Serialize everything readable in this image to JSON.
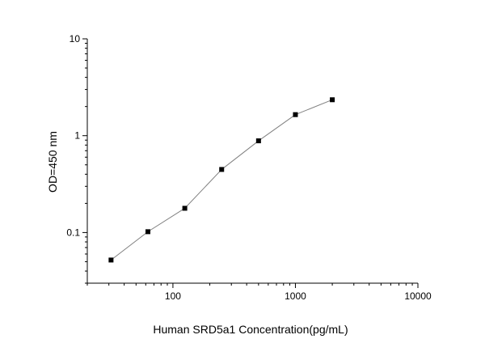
{
  "chart_data": {
    "type": "line",
    "title": "",
    "xlabel": "Human SRD5a1 Concentration(pg/mL)",
    "ylabel": "OD=450 nm",
    "xscale": "log",
    "yscale": "log",
    "xlim": [
      20,
      10000
    ],
    "ylim": [
      0.03,
      10
    ],
    "x_ticks": [
      {
        "value": 100,
        "label": "100"
      },
      {
        "value": 1000,
        "label": "1000"
      },
      {
        "value": 10000,
        "label": "10000"
      }
    ],
    "y_ticks": [
      {
        "value": 0.1,
        "label": "0.1"
      },
      {
        "value": 1,
        "label": "1"
      },
      {
        "value": 10,
        "label": "10"
      }
    ],
    "grid": false,
    "legend": "none",
    "marker": "square",
    "line_color": "#808080",
    "marker_color": "#000000",
    "series": [
      {
        "x": [
          31.25,
          62.5,
          125,
          250,
          500,
          1000,
          2000
        ],
        "y": [
          0.052,
          0.102,
          0.178,
          0.448,
          0.885,
          1.65,
          2.35
        ]
      }
    ]
  }
}
